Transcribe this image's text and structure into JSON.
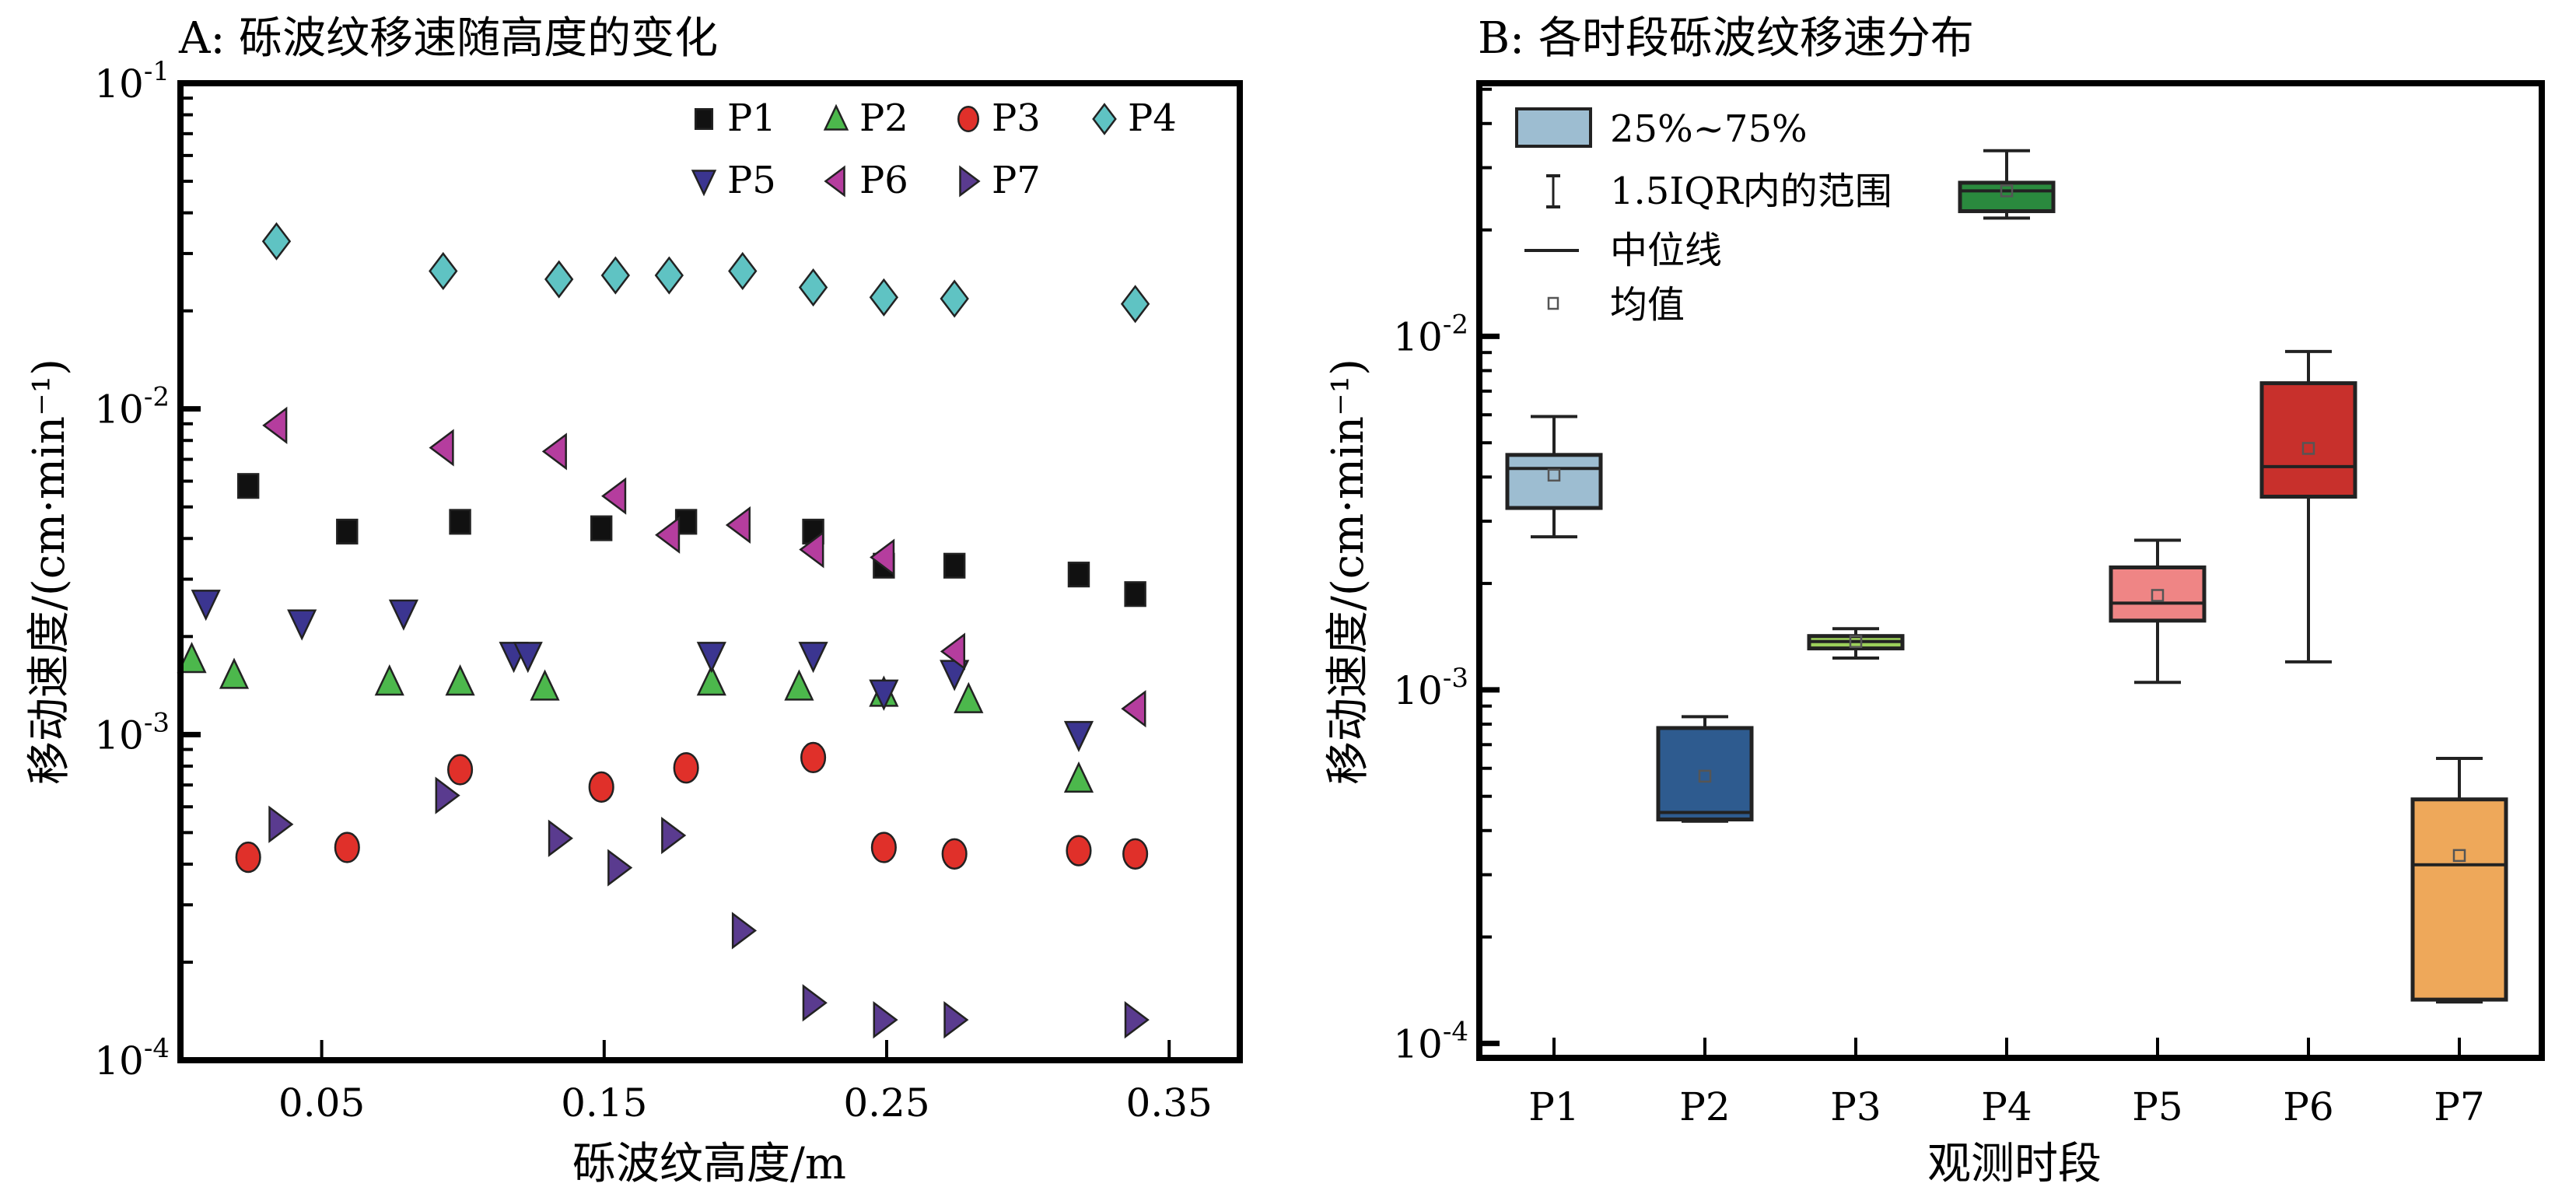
{
  "chart_data": [
    {
      "panel": "A",
      "type": "scatter",
      "title": "A: 砾波纹移速随高度的变化",
      "xlabel": "砾波纹高度/m",
      "ylabel": "移动速度/(cm·min⁻¹)",
      "xscale": "linear",
      "yscale": "log",
      "xlim": [
        0.0,
        0.375
      ],
      "ylim": [
        0.0001,
        0.1
      ],
      "xticks": [
        0.05,
        0.15,
        0.25,
        0.35
      ],
      "xtick_labels": [
        "0.05",
        "0.15",
        "0.25",
        "0.35"
      ],
      "yticks": [
        0.1,
        0.01,
        0.001,
        0.0001
      ],
      "ytick_labels": [
        {
          "base": "10",
          "exp": "-1"
        },
        {
          "base": "10",
          "exp": "-2"
        },
        {
          "base": "10",
          "exp": "-3"
        },
        {
          "base": "10",
          "exp": "-4"
        }
      ],
      "legend_position": "top-right",
      "series": [
        {
          "name": "P1",
          "marker": "square",
          "color": "#111111",
          "x": [
            0.024,
            0.059,
            0.099,
            0.149,
            0.179,
            0.224,
            0.249,
            0.274,
            0.318,
            0.338
          ],
          "y": [
            0.0058,
            0.0042,
            0.0045,
            0.0043,
            0.0045,
            0.0042,
            0.0033,
            0.0033,
            0.0031,
            0.0027
          ]
        },
        {
          "name": "P2",
          "marker": "triangle-up",
          "color": "#4cb84c",
          "x": [
            0.004,
            0.019,
            0.074,
            0.099,
            0.129,
            0.188,
            0.219,
            0.249,
            0.279,
            0.318
          ],
          "y": [
            0.0017,
            0.00152,
            0.00145,
            0.00145,
            0.0014,
            0.00145,
            0.0014,
            0.00134,
            0.00128,
            0.00073
          ]
        },
        {
          "name": "P3",
          "marker": "circle",
          "color": "#e0302a",
          "x": [
            0.024,
            0.059,
            0.099,
            0.149,
            0.179,
            0.224,
            0.249,
            0.274,
            0.318,
            0.338
          ],
          "y": [
            0.00042,
            0.00045,
            0.00078,
            0.00069,
            0.00079,
            0.00085,
            0.00045,
            0.00043,
            0.00044,
            0.00043
          ]
        },
        {
          "name": "P4",
          "marker": "diamond",
          "color": "#5fc3c3",
          "x": [
            0.034,
            0.093,
            0.134,
            0.154,
            0.173,
            0.199,
            0.224,
            0.249,
            0.274,
            0.338
          ],
          "y": [
            0.0327,
            0.0265,
            0.025,
            0.0257,
            0.0257,
            0.0265,
            0.0236,
            0.022,
            0.0218,
            0.021
          ]
        },
        {
          "name": "P5",
          "marker": "triangle-down",
          "color": "#3b3590",
          "x": [
            0.009,
            0.043,
            0.079,
            0.118,
            0.123,
            0.188,
            0.224,
            0.249,
            0.274,
            0.318
          ],
          "y": [
            0.00253,
            0.0022,
            0.00236,
            0.00175,
            0.00175,
            0.00175,
            0.00175,
            0.00134,
            0.00154,
            0.001
          ]
        },
        {
          "name": "P6",
          "marker": "triangle-left",
          "color": "#b53d9e",
          "x": [
            0.034,
            0.093,
            0.133,
            0.154,
            0.173,
            0.198,
            0.224,
            0.249,
            0.274,
            0.338
          ],
          "y": [
            0.0089,
            0.0076,
            0.0074,
            0.0054,
            0.0041,
            0.0044,
            0.0037,
            0.0035,
            0.0018,
            0.0012
          ]
        },
        {
          "name": "P7",
          "marker": "triangle-right",
          "color": "#5a3b8f",
          "x": [
            0.035,
            0.094,
            0.134,
            0.155,
            0.174,
            0.199,
            0.224,
            0.249,
            0.274,
            0.338
          ],
          "y": [
            0.00053,
            0.00065,
            0.00048,
            0.00039,
            0.00049,
            0.00025,
            0.00015,
            0.000133,
            0.000133,
            0.000133
          ]
        }
      ]
    },
    {
      "panel": "B",
      "type": "box",
      "title": "B: 各时段砾波纹移速分布",
      "xlabel": "观测时段",
      "ylabel": "移动速度/(cm·min⁻¹)",
      "yscale": "log",
      "ylim": [
        9.1e-05,
        0.052
      ],
      "yticks": [
        0.01,
        0.001,
        0.0001
      ],
      "ytick_labels": [
        {
          "base": "10",
          "exp": "-2"
        },
        {
          "base": "10",
          "exp": "-3"
        },
        {
          "base": "10",
          "exp": "-4"
        }
      ],
      "categories": [
        "P1",
        "P2",
        "P3",
        "P4",
        "P5",
        "P6",
        "P7"
      ],
      "legend_position": "top-left",
      "legend": [
        {
          "kind": "box",
          "label": "25%~75%",
          "color": "#9dbdd1"
        },
        {
          "kind": "whisker",
          "label": "1.5IQR内的范围"
        },
        {
          "kind": "median",
          "label": "中位线"
        },
        {
          "kind": "mean",
          "label": "均值"
        }
      ],
      "boxes": [
        {
          "name": "P1",
          "color": "#9dbdd1",
          "whisker_low": 0.00271,
          "q1": 0.00327,
          "median": 0.00423,
          "mean": 0.00405,
          "q3": 0.00462,
          "whisker_high": 0.00593
        },
        {
          "name": "P2",
          "color": "#2e5b8f",
          "whisker_low": 0.000425,
          "q1": 0.00043,
          "median": 0.00045,
          "mean": 0.00057,
          "q3": 0.00078,
          "whisker_high": 0.00084
        },
        {
          "name": "P3",
          "color": "#9ccf5a",
          "whisker_low": 0.00123,
          "q1": 0.00131,
          "median": 0.00137,
          "mean": 0.00137,
          "q3": 0.00142,
          "whisker_high": 0.00149
        },
        {
          "name": "P4",
          "color": "#2a8a3e",
          "whisker_low": 0.0216,
          "q1": 0.0226,
          "median": 0.0258,
          "mean": 0.0258,
          "q3": 0.0272,
          "whisker_high": 0.0335
        },
        {
          "name": "P5",
          "color": "#ef8585",
          "whisker_low": 0.00105,
          "q1": 0.00157,
          "median": 0.00176,
          "mean": 0.00185,
          "q3": 0.00222,
          "whisker_high": 0.00265
        },
        {
          "name": "P6",
          "color": "#c8302c",
          "whisker_low": 0.0012,
          "q1": 0.00352,
          "median": 0.00428,
          "mean": 0.00482,
          "q3": 0.00737,
          "whisker_high": 0.00906
        },
        {
          "name": "P7",
          "color": "#eea85a",
          "whisker_low": 0.000131,
          "q1": 0.000133,
          "median": 0.00032,
          "mean": 0.00034,
          "q3": 0.00049,
          "whisker_high": 0.00064
        }
      ]
    }
  ]
}
